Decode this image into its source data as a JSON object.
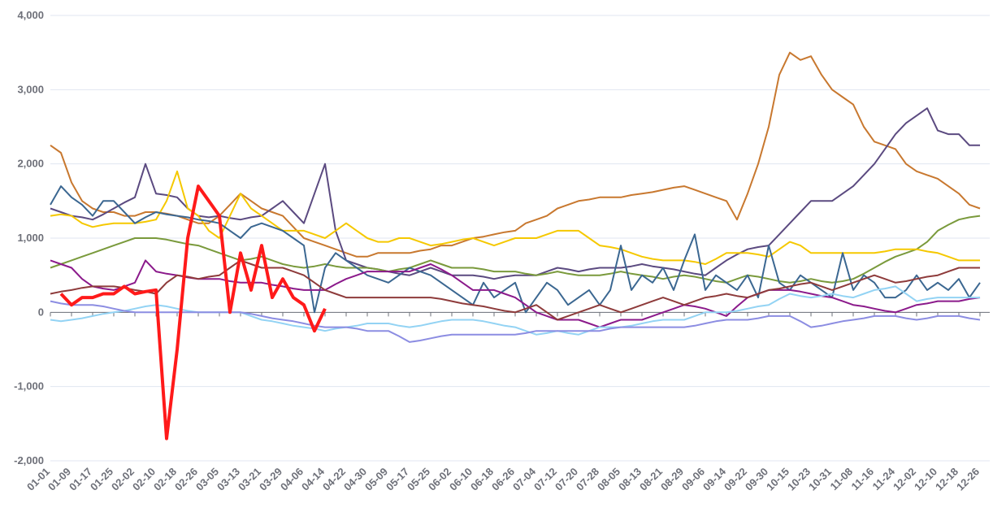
{
  "chart_data": {
    "type": "line",
    "categories": [
      "01-01",
      null,
      "01-09",
      null,
      "01-17",
      null,
      "01-25",
      null,
      "02-02",
      null,
      "02-10",
      null,
      "02-18",
      null,
      "02-26",
      null,
      "03-05",
      null,
      "03-13",
      null,
      "03-21",
      null,
      "03-29",
      null,
      "04-06",
      null,
      "04-14",
      null,
      "04-22",
      null,
      "04-30",
      null,
      "05-09",
      null,
      "05-17",
      null,
      "05-25",
      null,
      "06-02",
      null,
      "06-10",
      null,
      "06-18",
      null,
      "06-26",
      null,
      "07-04",
      null,
      "07-12",
      null,
      "07-20",
      null,
      "07-28",
      null,
      "08-05",
      null,
      "08-13",
      null,
      "08-21",
      null,
      "08-29",
      null,
      "09-06",
      null,
      "09-14",
      null,
      "09-22",
      null,
      "09-30",
      null,
      "10-15",
      null,
      "10-23",
      null,
      "10-31",
      null,
      "11-08",
      null,
      "11-16",
      null,
      "11-24",
      null,
      "12-02",
      null,
      "12-10",
      null,
      "12-18",
      null,
      "12-26"
    ],
    "ylim": [
      -2000,
      4000
    ],
    "yticks": [
      {
        "value": -2000,
        "label": "-2,000"
      },
      {
        "value": -1000,
        "label": "-1,000"
      },
      0,
      {
        "value": 1000,
        "label": "1,000"
      },
      {
        "value": 2000,
        "label": "2,000"
      },
      {
        "value": 3000,
        "label": "3,000"
      },
      {
        "value": 4000,
        "label": "4,000"
      }
    ],
    "grid": true,
    "series": [
      {
        "color": "#c8782f",
        "values": [
          2250,
          2150,
          1750,
          1500,
          1400,
          1350,
          1350,
          1300,
          1300,
          1350,
          1350,
          1330,
          1300,
          1250,
          1200,
          1200,
          1300,
          1450,
          1600,
          1500,
          1400,
          1350,
          1300,
          1150,
          1000,
          950,
          900,
          850,
          800,
          750,
          750,
          800,
          800,
          800,
          800,
          830,
          850,
          900,
          900,
          950,
          1000,
          1020,
          1050,
          1080,
          1100,
          1200,
          1250,
          1300,
          1400,
          1450,
          1500,
          1520,
          1550,
          1550,
          1550,
          1580,
          1600,
          1620,
          1650,
          1680,
          1700,
          1650,
          1600,
          1550,
          1500,
          1250,
          1600,
          2000,
          2500,
          3200,
          3500,
          3400,
          3450,
          3200,
          3000,
          2900,
          2800,
          2500,
          2300,
          2250,
          2200,
          2000,
          1900,
          1850,
          1800,
          1700,
          1600,
          1450,
          1400
        ]
      },
      {
        "color": "#5b4a80",
        "values": [
          1400,
          1350,
          1300,
          1280,
          1250,
          1320,
          1400,
          1480,
          1550,
          2000,
          1600,
          1580,
          1550,
          1400,
          1300,
          1280,
          1300,
          1270,
          1250,
          1280,
          1300,
          1400,
          1500,
          1350,
          1200,
          1600,
          2000,
          1100,
          700,
          650,
          600,
          580,
          550,
          520,
          500,
          550,
          600,
          550,
          500,
          500,
          500,
          480,
          450,
          480,
          500,
          500,
          500,
          550,
          600,
          580,
          550,
          580,
          600,
          600,
          600,
          620,
          650,
          620,
          600,
          580,
          550,
          520,
          500,
          600,
          700,
          780,
          850,
          880,
          900,
          1050,
          1200,
          1350,
          1500,
          1500,
          1500,
          1600,
          1700,
          1850,
          2000,
          2200,
          2400,
          2550,
          2650,
          2750,
          2450,
          2400,
          2400,
          2250,
          2250
        ]
      },
      {
        "color": "#7a9a3c",
        "values": [
          600,
          650,
          700,
          750,
          800,
          850,
          900,
          950,
          1000,
          1000,
          1000,
          980,
          950,
          920,
          900,
          850,
          800,
          750,
          700,
          720,
          750,
          700,
          650,
          620,
          600,
          620,
          650,
          620,
          600,
          600,
          600,
          580,
          550,
          580,
          600,
          650,
          700,
          650,
          600,
          600,
          600,
          580,
          550,
          550,
          550,
          520,
          500,
          520,
          550,
          520,
          500,
          500,
          500,
          520,
          550,
          520,
          500,
          480,
          450,
          480,
          500,
          480,
          450,
          420,
          400,
          450,
          500,
          480,
          450,
          420,
          400,
          420,
          450,
          420,
          400,
          420,
          450,
          520,
          600,
          680,
          750,
          800,
          850,
          950,
          1100,
          1180,
          1250,
          1280,
          1300
        ]
      },
      {
        "color": "#f5c800",
        "values": [
          1300,
          1320,
          1300,
          1200,
          1150,
          1180,
          1200,
          1200,
          1200,
          1220,
          1250,
          1500,
          1900,
          1400,
          1300,
          1100,
          1000,
          1300,
          1600,
          1400,
          1300,
          1200,
          1100,
          1100,
          1100,
          1050,
          1000,
          1100,
          1200,
          1100,
          1000,
          950,
          950,
          1000,
          1000,
          950,
          900,
          920,
          950,
          980,
          1000,
          950,
          900,
          950,
          1000,
          1000,
          1000,
          1050,
          1100,
          1100,
          1100,
          1000,
          900,
          880,
          850,
          800,
          750,
          720,
          700,
          700,
          700,
          680,
          650,
          720,
          800,
          800,
          800,
          780,
          750,
          850,
          950,
          900,
          800,
          800,
          800,
          800,
          800,
          800,
          800,
          820,
          850,
          850,
          850,
          820,
          800,
          750,
          700,
          700,
          700
        ]
      },
      {
        "color": "#3b6791",
        "values": [
          1450,
          1700,
          1550,
          1450,
          1300,
          1500,
          1500,
          1350,
          1200,
          1280,
          1350,
          1320,
          1300,
          1280,
          1250,
          1230,
          1200,
          1100,
          1000,
          1150,
          1200,
          1150,
          1100,
          1000,
          900,
          0,
          600,
          800,
          700,
          600,
          500,
          450,
          400,
          500,
          600,
          550,
          500,
          400,
          300,
          200,
          100,
          400,
          200,
          300,
          400,
          0,
          200,
          400,
          300,
          100,
          200,
          300,
          100,
          300,
          900,
          300,
          500,
          400,
          600,
          300,
          700,
          1050,
          300,
          500,
          400,
          300,
          500,
          200,
          900,
          400,
          300,
          500,
          400,
          300,
          200,
          800,
          300,
          500,
          400,
          200,
          200,
          300,
          500,
          300,
          400,
          300,
          450,
          200,
          400
        ]
      },
      {
        "color": "#8b1a8b",
        "values": [
          700,
          650,
          600,
          450,
          350,
          320,
          300,
          350,
          400,
          700,
          550,
          520,
          500,
          470,
          450,
          450,
          450,
          420,
          400,
          400,
          400,
          370,
          350,
          320,
          300,
          300,
          300,
          380,
          450,
          500,
          550,
          550,
          550,
          550,
          550,
          600,
          650,
          580,
          500,
          400,
          300,
          300,
          300,
          250,
          200,
          100,
          0,
          -50,
          -100,
          -100,
          -100,
          -150,
          -200,
          -150,
          -100,
          -100,
          -100,
          -50,
          0,
          50,
          100,
          80,
          50,
          0,
          -50,
          80,
          200,
          250,
          300,
          300,
          300,
          280,
          250,
          220,
          200,
          150,
          100,
          80,
          50,
          20,
          0,
          50,
          100,
          120,
          150,
          150,
          150,
          180,
          200
        ]
      },
      {
        "color": "#8e3b3b",
        "values": [
          250,
          280,
          300,
          330,
          350,
          350,
          350,
          330,
          300,
          280,
          250,
          400,
          500,
          480,
          450,
          480,
          500,
          600,
          700,
          650,
          600,
          600,
          600,
          550,
          500,
          400,
          300,
          250,
          200,
          200,
          200,
          200,
          200,
          200,
          200,
          200,
          200,
          180,
          150,
          120,
          100,
          80,
          50,
          20,
          0,
          50,
          100,
          0,
          -100,
          -50,
          0,
          50,
          100,
          50,
          0,
          50,
          100,
          150,
          200,
          150,
          100,
          150,
          200,
          220,
          250,
          220,
          200,
          250,
          300,
          320,
          350,
          380,
          400,
          350,
          300,
          350,
          400,
          450,
          500,
          450,
          400,
          420,
          450,
          480,
          500,
          550,
          600,
          600,
          600
        ]
      },
      {
        "color": "#93d3f4",
        "values": [
          -100,
          -120,
          -100,
          -80,
          -50,
          -20,
          0,
          20,
          50,
          80,
          100,
          80,
          50,
          20,
          0,
          0,
          0,
          0,
          0,
          -50,
          -100,
          -120,
          -150,
          -180,
          -200,
          -220,
          -250,
          -220,
          -200,
          -180,
          -150,
          -150,
          -150,
          -180,
          -200,
          -180,
          -150,
          -120,
          -100,
          -100,
          -100,
          -120,
          -150,
          -180,
          -200,
          -250,
          -300,
          -280,
          -250,
          -280,
          -300,
          -250,
          -200,
          -200,
          -200,
          -180,
          -150,
          -120,
          -100,
          -100,
          -100,
          -50,
          0,
          0,
          0,
          20,
          50,
          80,
          100,
          180,
          250,
          220,
          200,
          220,
          250,
          220,
          200,
          250,
          300,
          320,
          350,
          250,
          150,
          180,
          200,
          200,
          200,
          200,
          200
        ]
      },
      {
        "color": "#8c8de2",
        "values": [
          150,
          120,
          100,
          100,
          100,
          80,
          50,
          20,
          0,
          0,
          0,
          0,
          0,
          0,
          0,
          0,
          0,
          0,
          0,
          -20,
          -50,
          -80,
          -100,
          -120,
          -150,
          -180,
          -200,
          -200,
          -200,
          -220,
          -250,
          -250,
          -250,
          -320,
          -400,
          -380,
          -350,
          -320,
          -300,
          -300,
          -300,
          -300,
          -300,
          -300,
          -300,
          -280,
          -250,
          -250,
          -250,
          -250,
          -250,
          -250,
          -250,
          -220,
          -200,
          -200,
          -200,
          -200,
          -200,
          -200,
          -200,
          -180,
          -150,
          -120,
          -100,
          -100,
          -100,
          -80,
          -50,
          -50,
          -50,
          -120,
          -200,
          -180,
          -150,
          -120,
          -100,
          -80,
          -50,
          -50,
          -50,
          -80,
          -100,
          -80,
          -50,
          -50,
          -50,
          -80,
          -100
        ]
      },
      {
        "color": "#ff1a1a",
        "width": 4,
        "values": [
          null,
          250,
          100,
          200,
          200,
          250,
          250,
          350,
          250,
          280,
          300,
          -1700,
          -500,
          1000,
          1700,
          1500,
          1300,
          0,
          800,
          300,
          900,
          200,
          450,
          200,
          100,
          -250,
          50,
          null,
          null,
          null,
          null,
          null,
          null,
          null,
          null,
          null,
          null,
          null,
          null,
          null,
          null,
          null,
          null,
          null,
          null,
          null,
          null,
          null,
          null,
          null,
          null,
          null,
          null,
          null,
          null,
          null,
          null,
          null,
          null,
          null,
          null,
          null,
          null,
          null,
          null,
          null,
          null,
          null,
          null,
          null,
          null,
          null,
          null,
          null,
          null,
          null,
          null,
          null,
          null,
          null,
          null,
          null,
          null,
          null,
          null,
          null,
          null,
          null,
          null
        ]
      }
    ]
  }
}
